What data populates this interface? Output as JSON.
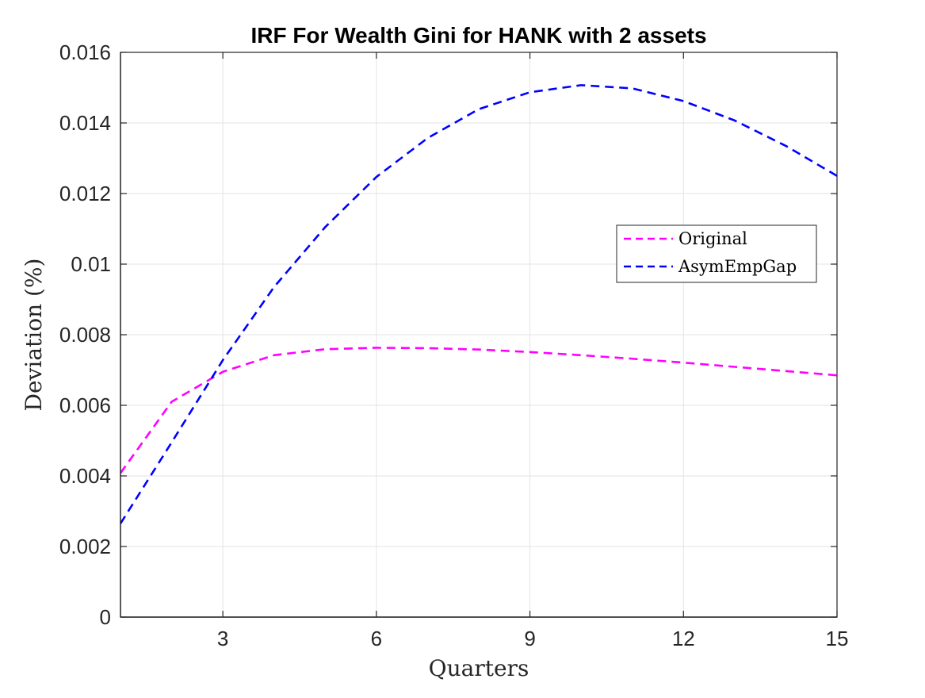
{
  "chart_data": {
    "type": "line",
    "title": "IRF For Wealth Gini for HANK with 2 assets",
    "xlabel": "Quarters",
    "ylabel": "Deviation (%)",
    "xlim": [
      1,
      15
    ],
    "ylim": [
      0,
      0.016
    ],
    "xticks": [
      3,
      6,
      9,
      12,
      15
    ],
    "xtick_labels": [
      "3",
      "6",
      "9",
      "12",
      "15"
    ],
    "yticks": [
      0,
      0.002,
      0.004,
      0.006,
      0.008,
      0.01,
      0.012,
      0.014,
      0.016
    ],
    "ytick_labels": [
      "0",
      "0.002",
      "0.004",
      "0.006",
      "0.008",
      "0.01",
      "0.012",
      "0.014",
      "0.016"
    ],
    "grid": true,
    "legend_position": "right",
    "x": [
      1,
      2,
      3,
      4,
      5,
      6,
      7,
      8,
      9,
      10,
      11,
      12,
      13,
      14,
      15
    ],
    "series": [
      {
        "name": "Original",
        "color": "#ff00ff",
        "line_style": "dashed",
        "values": [
          0.00408,
          0.0061,
          0.00695,
          0.00742,
          0.00759,
          0.00763,
          0.00762,
          0.00758,
          0.00751,
          0.00742,
          0.00732,
          0.00721,
          0.00709,
          0.00697,
          0.00685
        ]
      },
      {
        "name": "AsymEmpGap",
        "color": "#0000ff",
        "line_style": "dashed",
        "values": [
          0.00265,
          0.00495,
          0.00728,
          0.00935,
          0.01105,
          0.01247,
          0.01357,
          0.01439,
          0.01487,
          0.01507,
          0.01498,
          0.01462,
          0.01407,
          0.01335,
          0.0125
        ]
      }
    ]
  }
}
